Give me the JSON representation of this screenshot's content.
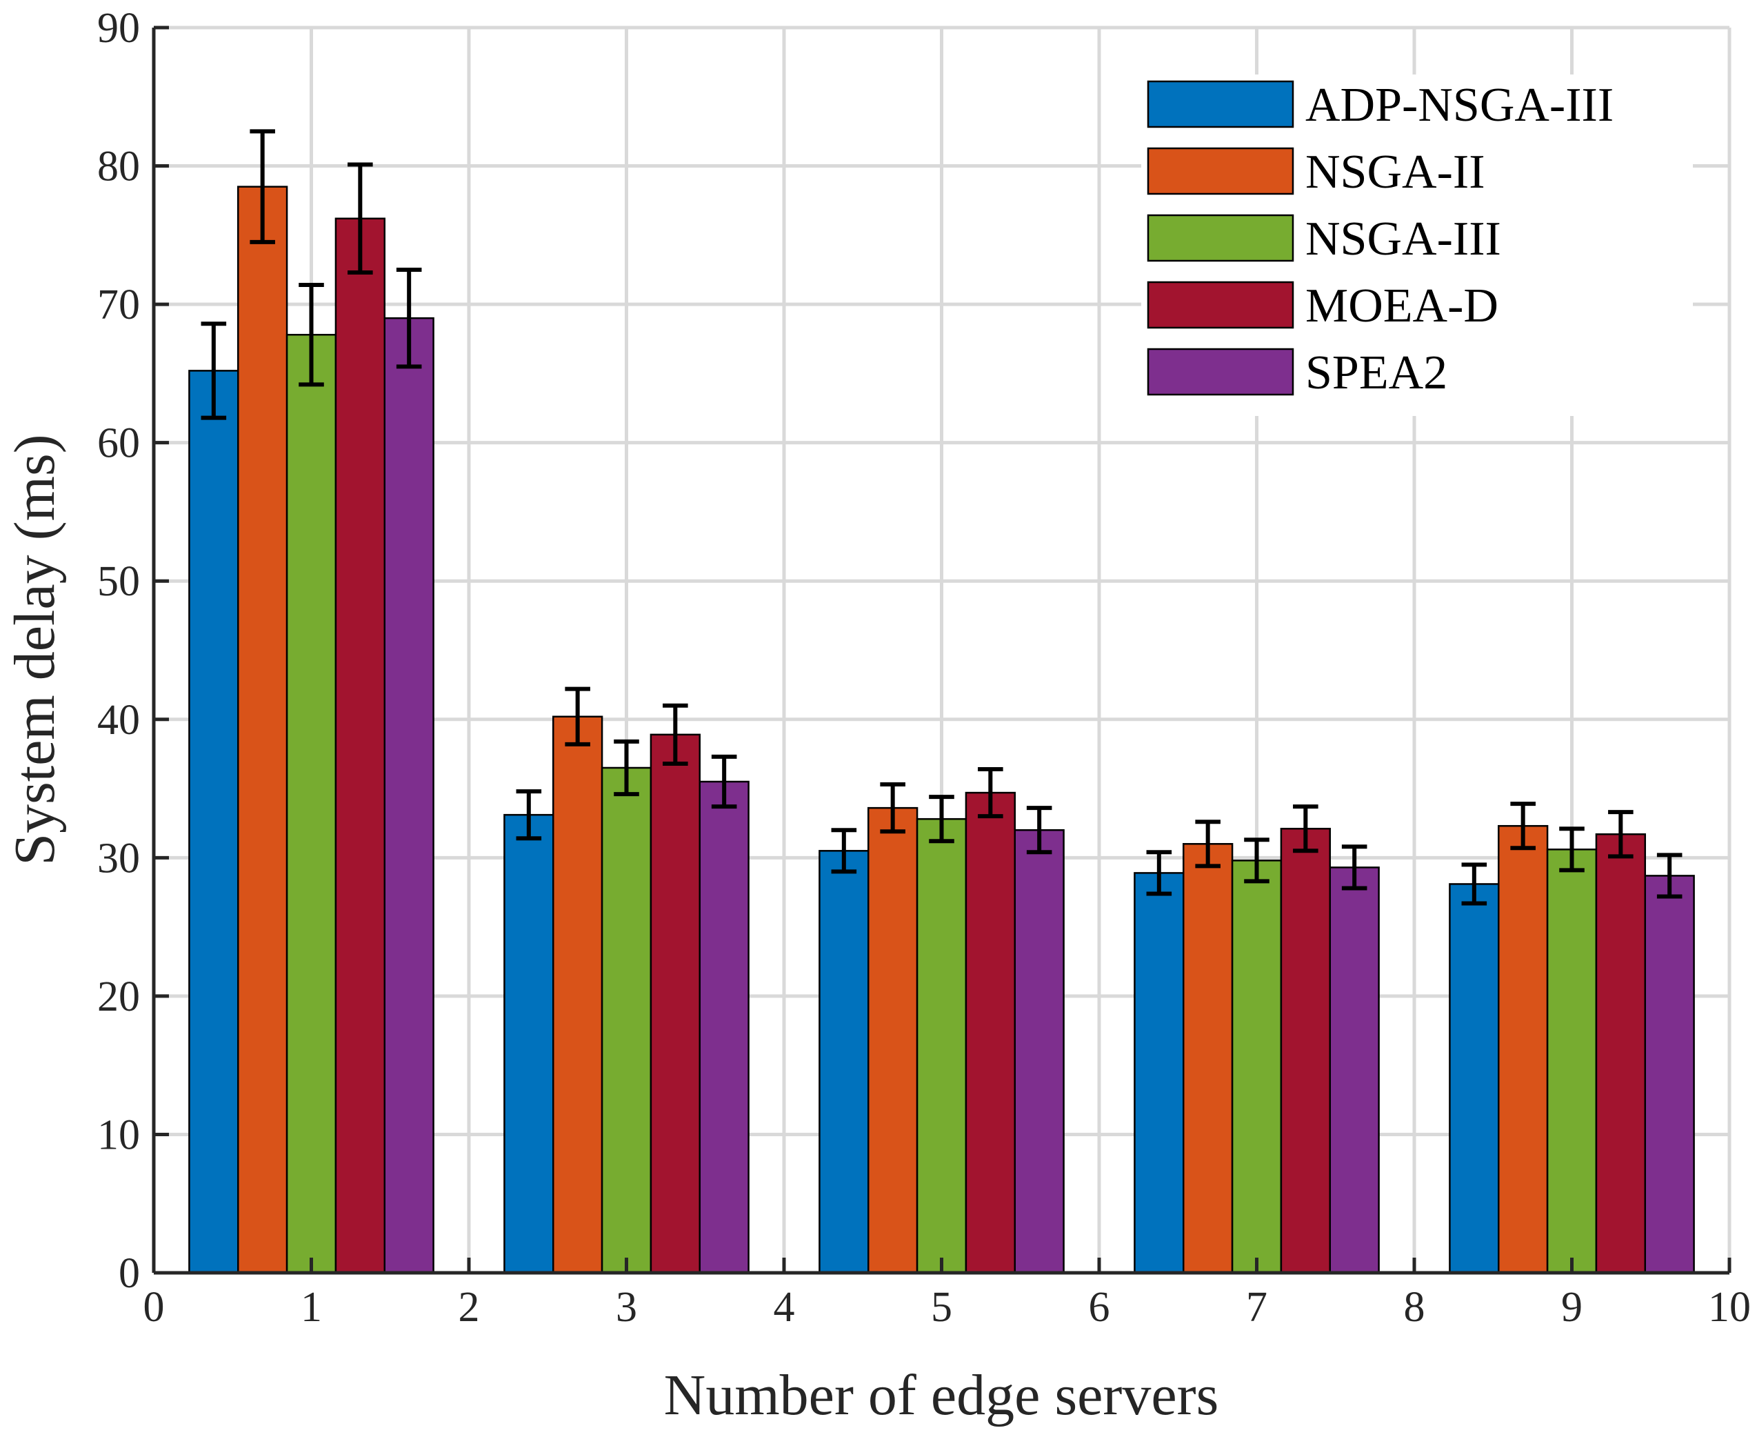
{
  "chart_data": {
    "type": "bar",
    "title": "",
    "xlabel": "Number of edge servers",
    "ylabel": "System delay (ms)",
    "xlim": [
      0,
      10
    ],
    "ylim": [
      0,
      90
    ],
    "x_ticks": [
      "0",
      "1",
      "2",
      "3",
      "4",
      "5",
      "6",
      "7",
      "8",
      "9",
      "10"
    ],
    "y_ticks": [
      "0",
      "10",
      "20",
      "30",
      "40",
      "50",
      "60",
      "70",
      "80",
      "90"
    ],
    "grid": true,
    "legend_position": "top-right",
    "categories": [
      1,
      3,
      5,
      7,
      9
    ],
    "series": [
      {
        "name": "ADP-NSGA-III",
        "color": "#0072BD",
        "values": [
          65.2,
          33.1,
          30.5,
          28.9,
          28.1
        ],
        "errors": [
          3.4,
          1.7,
          1.5,
          1.5,
          1.4
        ]
      },
      {
        "name": "NSGA-II",
        "color": "#D95319",
        "values": [
          78.5,
          40.2,
          33.6,
          31.0,
          32.3
        ],
        "errors": [
          4.0,
          2.0,
          1.7,
          1.6,
          1.6
        ]
      },
      {
        "name": "NSGA-III",
        "color": "#77AC30",
        "values": [
          67.8,
          36.5,
          32.8,
          29.8,
          30.6
        ],
        "errors": [
          3.6,
          1.9,
          1.6,
          1.5,
          1.5
        ]
      },
      {
        "name": "MOEA-D",
        "color": "#A2142F",
        "values": [
          76.2,
          38.9,
          34.7,
          32.1,
          31.7
        ],
        "errors": [
          3.9,
          2.1,
          1.7,
          1.6,
          1.6
        ]
      },
      {
        "name": "SPEA2",
        "color": "#7E2F8E",
        "values": [
          69.0,
          35.5,
          32.0,
          29.3,
          28.7
        ],
        "errors": [
          3.5,
          1.8,
          1.6,
          1.5,
          1.5
        ]
      }
    ]
  }
}
